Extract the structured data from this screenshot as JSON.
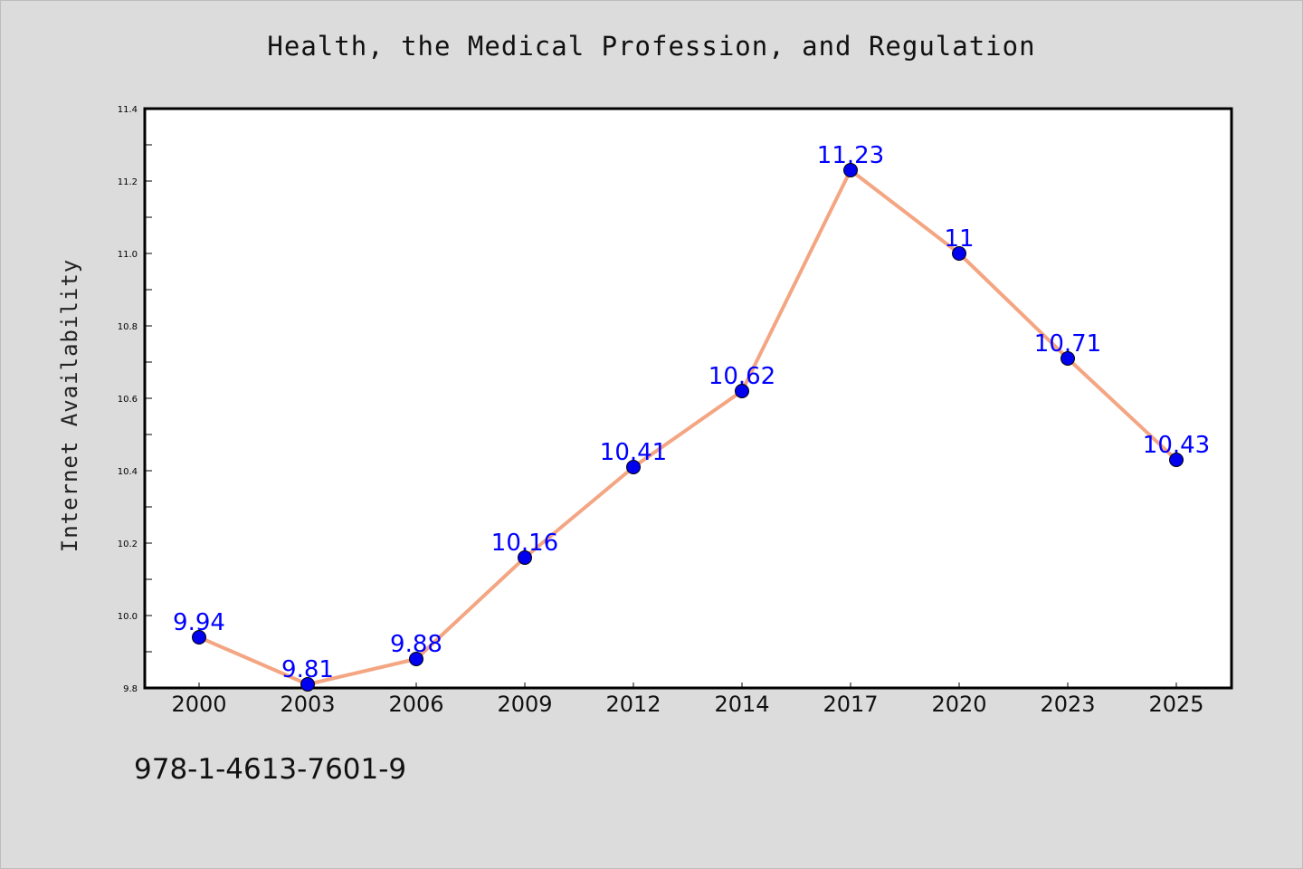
{
  "chart_data": {
    "type": "line",
    "title": "Health, the Medical Profession, and Regulation",
    "xlabel": "",
    "ylabel": "Internet Availability",
    "categories": [
      "2000",
      "2003",
      "2006",
      "2009",
      "2012",
      "2014",
      "2017",
      "2020",
      "2023",
      "2025"
    ],
    "values": [
      9.94,
      9.81,
      9.88,
      10.16,
      10.41,
      10.62,
      11.23,
      11,
      10.71,
      10.43
    ],
    "data_labels": [
      "9.94",
      "9.81",
      "9.88",
      "10.16",
      "10.41",
      "10.62",
      "11.23",
      "11",
      "10.71",
      "10.43"
    ],
    "ylim": [
      9.8,
      11.4
    ],
    "yticks": [
      "9.8",
      "10.0",
      "10.2",
      "10.4",
      "10.6",
      "10.8",
      "11.0",
      "11.2",
      "11.4"
    ],
    "grid": false,
    "line_color": "#f4a582",
    "marker_color": "#0000ee",
    "label_color": "#0000ff"
  },
  "footer": {
    "isbn": "978-1-4613-7601-9"
  }
}
